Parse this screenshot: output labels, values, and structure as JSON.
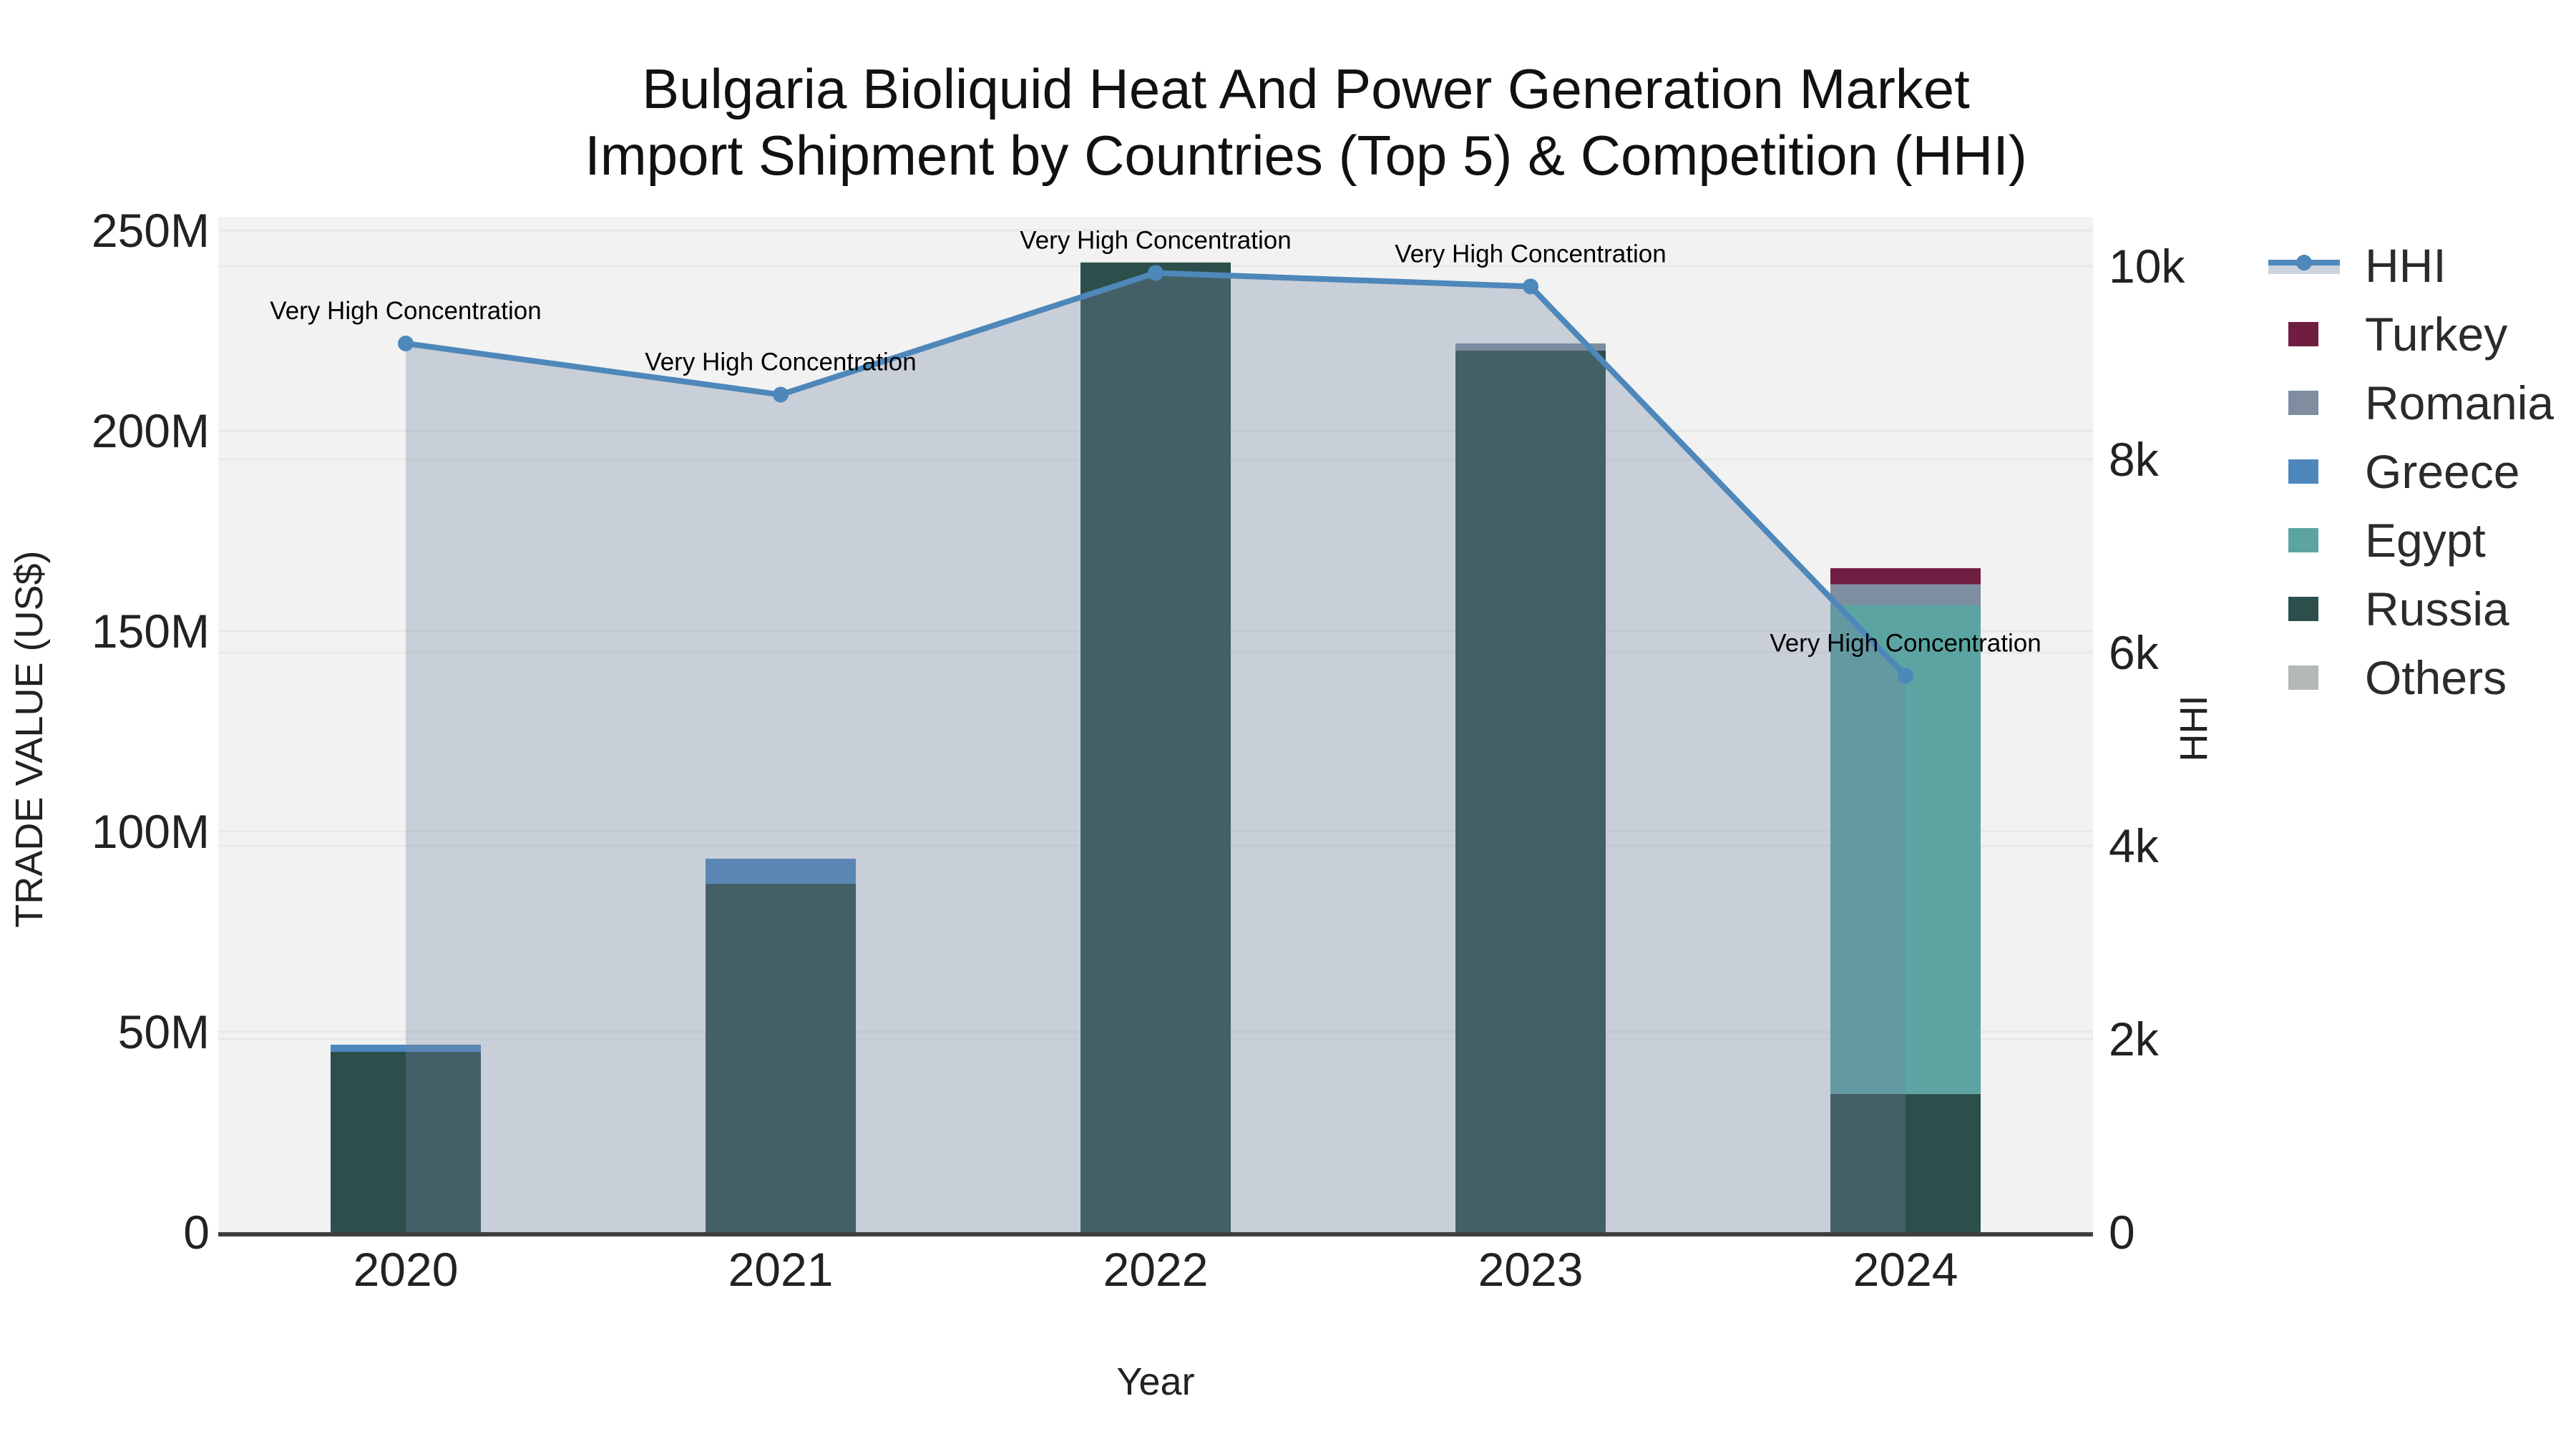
{
  "title": {
    "line1": "Bulgaria Bioliquid Heat And Power Generation Market",
    "line2": "Import Shipment by Countries (Top 5) & Competition (HHI)"
  },
  "x_axis": {
    "label": "Year",
    "ticks": [
      "2020",
      "2021",
      "2022",
      "2023",
      "2024"
    ]
  },
  "y_left_axis": {
    "label": "TRADE VALUE (US$)",
    "ticks": [
      "0",
      "50M",
      "100M",
      "150M",
      "200M",
      "250M"
    ]
  },
  "y_right_axis": {
    "label": "HHI",
    "ticks": [
      "0",
      "2k",
      "4k",
      "6k",
      "8k",
      "10k"
    ]
  },
  "legend": {
    "items": [
      {
        "label": "HHI",
        "type": "line",
        "color": "#4e87ba"
      },
      {
        "label": "Turkey",
        "type": "swatch",
        "color": "#6f1d41"
      },
      {
        "label": "Romania",
        "type": "swatch",
        "color": "#7e8ea0"
      },
      {
        "label": "Greece",
        "type": "swatch",
        "color": "#4d87bc"
      },
      {
        "label": "Egypt",
        "type": "swatch",
        "color": "#5ba4a1"
      },
      {
        "label": "Russia",
        "type": "swatch",
        "color": "#2d4f4b"
      },
      {
        "label": "Others",
        "type": "swatch",
        "color": "#b4b8b6"
      }
    ]
  },
  "chart_data": {
    "type": "bar+line",
    "title": "Bulgaria Bioliquid Heat And Power Generation Market Import Shipment by Countries (Top 5) & Competition (HHI)",
    "categories": [
      "2020",
      "2021",
      "2022",
      "2023",
      "2024"
    ],
    "bar_unit": "US$ million",
    "bar_stack_order_bottom_to_top": [
      "Russia",
      "Egypt",
      "Greece",
      "Romania",
      "Turkey",
      "Others"
    ],
    "series": [
      {
        "name": "Russia",
        "color": "#2d4f4b",
        "values": [
          45,
          87,
          242,
          220,
          34.5
        ]
      },
      {
        "name": "Egypt",
        "color": "#5ba4a1",
        "values": [
          0,
          0,
          0,
          0,
          122
        ]
      },
      {
        "name": "Greece",
        "color": "#4d87bc",
        "values": [
          1.8,
          6.2,
          0,
          0,
          0
        ]
      },
      {
        "name": "Romania",
        "color": "#7e8ea0",
        "values": [
          0,
          0,
          0,
          1.8,
          5.2
        ]
      },
      {
        "name": "Turkey",
        "color": "#6f1d41",
        "values": [
          0,
          0,
          0,
          0,
          4
        ]
      },
      {
        "name": "Others",
        "color": "#b4b8b6",
        "values": [
          0,
          0,
          0,
          0,
          0
        ]
      }
    ],
    "line_series": {
      "name": "HHI",
      "color": "#4e87ba",
      "area_fill": "rgba(118,134,166,0.32)",
      "values": [
        9200,
        8670,
        9930,
        9790,
        5760
      ]
    },
    "annotations": [
      {
        "x": "2020",
        "text": "Very High Concentration"
      },
      {
        "x": "2021",
        "text": "Very High Concentration"
      },
      {
        "x": "2022",
        "text": "Very High Concentration"
      },
      {
        "x": "2023",
        "text": "Very High Concentration"
      },
      {
        "x": "2024",
        "text": "Very High Concentration"
      }
    ],
    "xlabel": "Year",
    "ylabel_left": "TRADE VALUE (US$)",
    "ylabel_right": "HHI",
    "ylim_left_musd": [
      0,
      256
    ],
    "ylim_right": [
      0,
      10500
    ],
    "grid": true,
    "legend_position": "right",
    "colors": {
      "figure_bg": "#ffffff",
      "plot_bg": "#f1f2f1",
      "gridline": "#e7e9e8",
      "axis_line": "#3e3e3e",
      "tick_text": "#222222",
      "annotation_text": "#000000"
    }
  }
}
